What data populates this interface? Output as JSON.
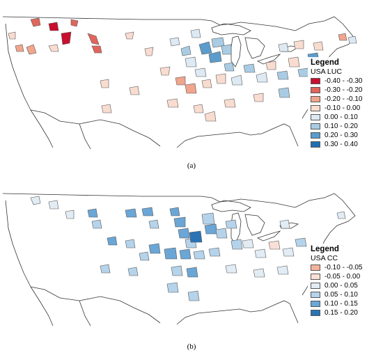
{
  "panels": [
    {
      "caption": "(a)",
      "legend": {
        "title": "Legend",
        "subtitle": "USA LUC",
        "classes": [
          {
            "label": "-0.40 - -0.30",
            "color": "#c8102e"
          },
          {
            "label": "-0.30 - -0.20",
            "color": "#e0665c"
          },
          {
            "label": "-0.20 - -0.10",
            "color": "#f0a58c"
          },
          {
            "label": "-0.10 - 0.00",
            "color": "#f9dcd0"
          },
          {
            "label": "0.00 - 0.10",
            "color": "#dde9f3"
          },
          {
            "label": "0.10 - 0.20",
            "color": "#a9cce4"
          },
          {
            "label": "0.20 - 0.30",
            "color": "#5b9ccc"
          },
          {
            "label": "0.30 - 0.40",
            "color": "#1f6fb4"
          }
        ]
      }
    },
    {
      "caption": "(b)",
      "legend": {
        "title": "Legend",
        "subtitle": "USA CC",
        "classes": [
          {
            "label": "-0.10 - -0.05",
            "color": "#f4b29a"
          },
          {
            "label": "-0.05 - 0.00",
            "color": "#f9e0d6"
          },
          {
            "label": "0.00 - 0.05",
            "color": "#e1ecf5"
          },
          {
            "label": "0.05 - 0.10",
            "color": "#b5d3ea"
          },
          {
            "label": "0.10 - 0.15",
            "color": "#6aa6d6"
          },
          {
            "label": "0.15 - 0.20",
            "color": "#2a74b5"
          }
        ]
      }
    }
  ]
}
